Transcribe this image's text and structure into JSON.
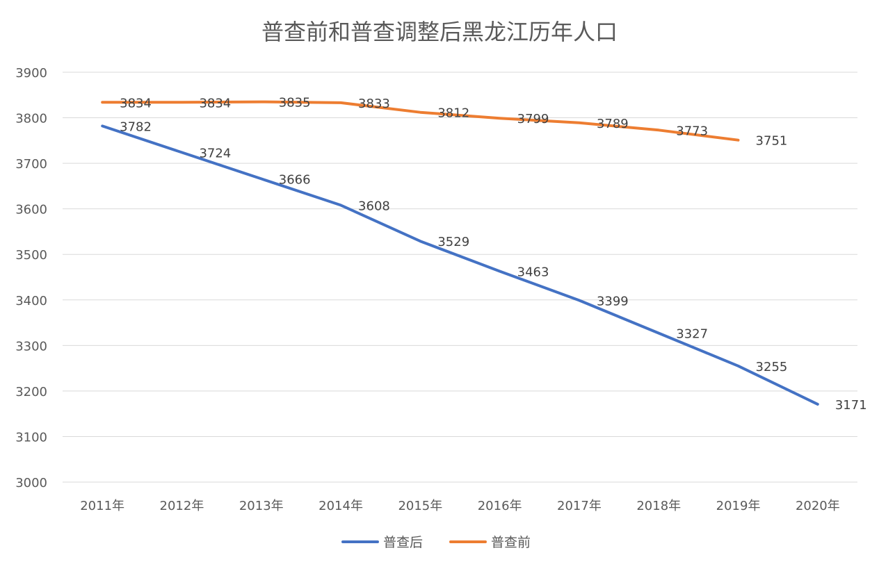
{
  "chart_data": {
    "type": "line",
    "title": "普查前和普查调整后黑龙江历年人口",
    "xlabel": "",
    "ylabel": "",
    "categories": [
      "2011年",
      "2012年",
      "2013年",
      "2014年",
      "2015年",
      "2016年",
      "2017年",
      "2018年",
      "2019年",
      "2020年"
    ],
    "ylim": [
      3000,
      3900
    ],
    "yticks": [
      "3000",
      "3100",
      "3200",
      "3300",
      "3400",
      "3500",
      "3600",
      "3700",
      "3800",
      "3900"
    ],
    "grid": true,
    "legend_position": "bottom",
    "series": [
      {
        "name": "普查后",
        "color": "#4472C4",
        "values": [
          3782,
          3724,
          3666,
          3608,
          3529,
          3463,
          3399,
          3327,
          3255,
          3171
        ]
      },
      {
        "name": "普查前",
        "color": "#ED7D31",
        "values": [
          3834,
          3834,
          3835,
          3833,
          3812,
          3799,
          3789,
          3773,
          3751,
          null
        ]
      }
    ]
  }
}
